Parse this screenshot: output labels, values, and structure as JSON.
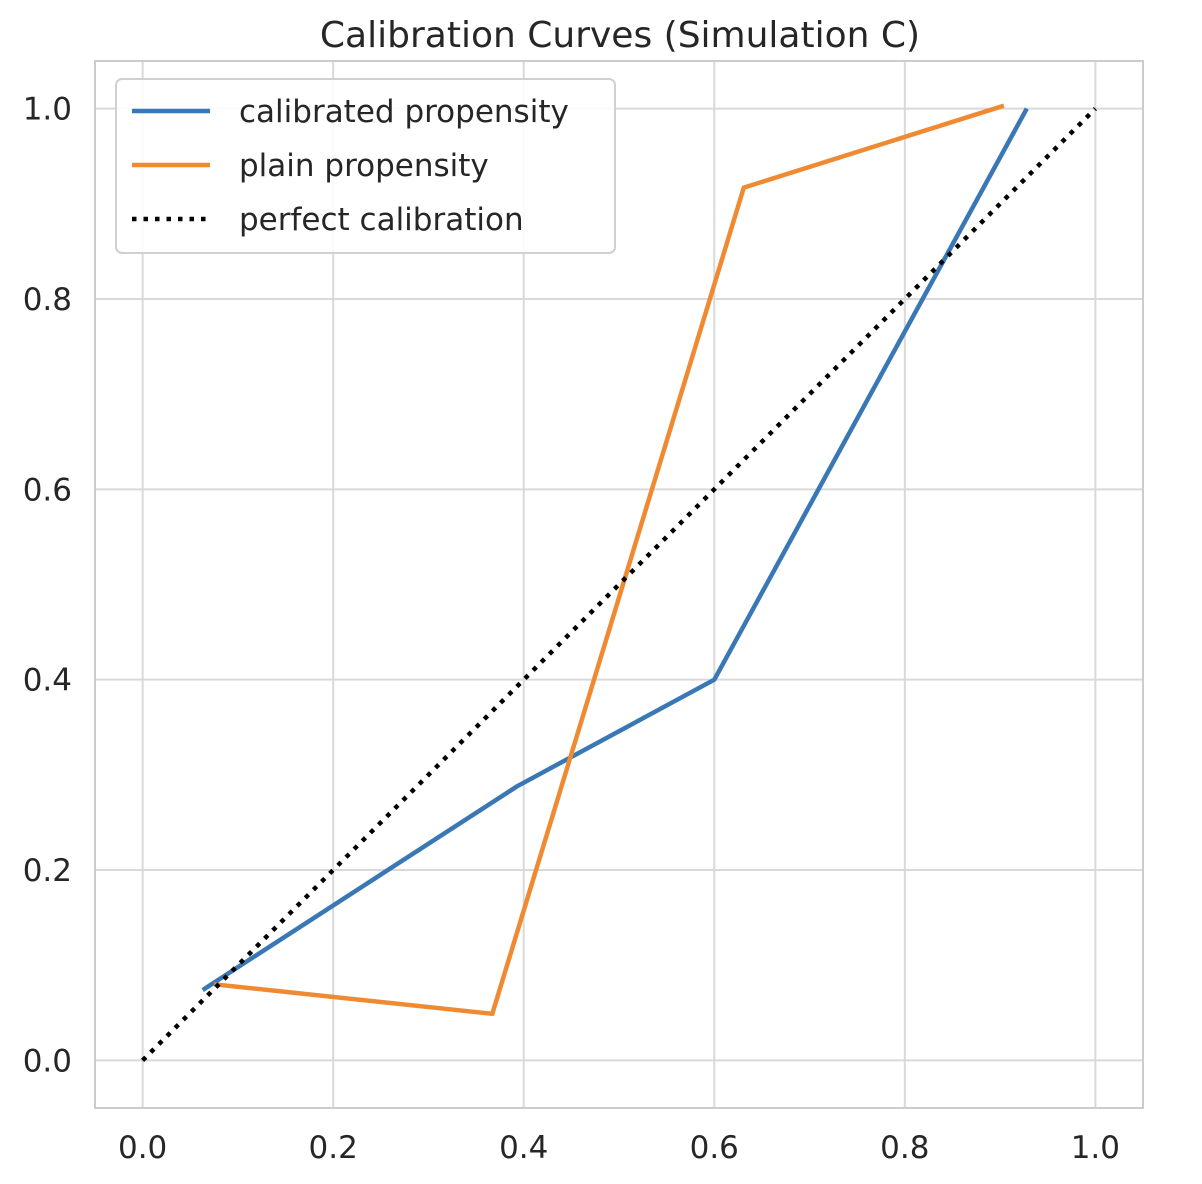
{
  "chart_data": {
    "type": "line",
    "title": "Calibration Curves (Simulation C)",
    "xlabel": "",
    "ylabel": "",
    "xlim": [
      -0.05,
      1.05
    ],
    "ylim": [
      -0.05,
      1.05
    ],
    "xticks": [
      0.0,
      0.2,
      0.4,
      0.6,
      0.8,
      1.0
    ],
    "yticks": [
      0.0,
      0.2,
      0.4,
      0.6,
      0.8,
      1.0
    ],
    "xtick_labels": [
      "0.0",
      "0.2",
      "0.4",
      "0.6",
      "0.8",
      "1.0"
    ],
    "ytick_labels": [
      "0.0",
      "0.2",
      "0.4",
      "0.6",
      "0.8",
      "1.0"
    ],
    "grid": true,
    "legend_position": "top-left",
    "series": [
      {
        "name": "calibrated propensity",
        "color": "#3a78b5",
        "style": "solid",
        "x": [
          0.063,
          0.393,
          0.6,
          0.928
        ],
        "y": [
          0.074,
          0.288,
          0.4,
          1.0
        ]
      },
      {
        "name": "plain propensity",
        "color": "#ef8a32",
        "style": "solid",
        "x": [
          0.075,
          0.367,
          0.631,
          0.904
        ],
        "y": [
          0.08,
          0.049,
          0.917,
          1.003
        ]
      },
      {
        "name": "perfect calibration",
        "color": "#000000",
        "style": "dotted",
        "x": [
          0.0,
          1.0
        ],
        "y": [
          0.0,
          1.0
        ]
      }
    ]
  }
}
